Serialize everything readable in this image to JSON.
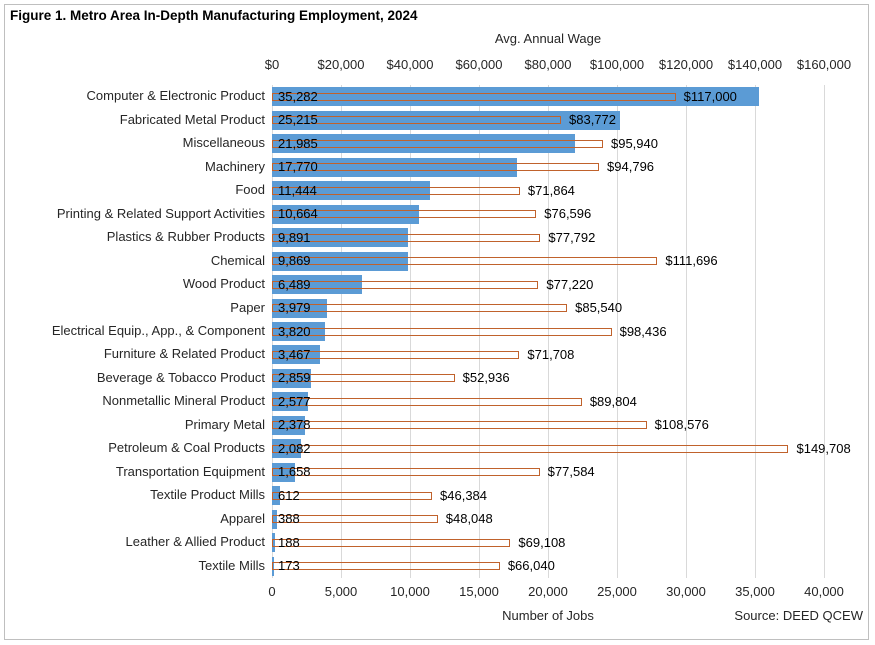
{
  "figure": {
    "title": "Figure 1. Metro Area In-Depth Manufacturing Employment, 2024",
    "source": "Source: DEED QCEW"
  },
  "colors": {
    "jobs_bar": "#5b9bd5",
    "wage_bar_outline": "#c0622c",
    "gridline": "#d9d9d9",
    "text": "#262626"
  },
  "chart_data": {
    "type": "bar",
    "orientation": "horizontal",
    "grid": true,
    "categories": [
      "Computer & Electronic Product",
      "Fabricated Metal Product",
      "Miscellaneous",
      "Machinery",
      "Food",
      "Printing & Related Support Activities",
      "Plastics & Rubber Products",
      "Chemical",
      "Wood Product",
      "Paper",
      "Electrical Equip., App., & Component",
      "Furniture & Related Product",
      "Beverage & Tobacco Product",
      "Nonmetallic Mineral Product",
      "Primary Metal",
      "Petroleum & Coal Products",
      "Transportation Equipment",
      "Textile Product Mills",
      "Apparel",
      "Leather & Allied Product",
      "Textile Mills"
    ],
    "series": [
      {
        "name": "Number of Jobs",
        "axis": "bottom",
        "style": "filled-bar",
        "values": [
          35282,
          25215,
          21985,
          17770,
          11444,
          10664,
          9891,
          9869,
          6489,
          3979,
          3820,
          3467,
          2859,
          2577,
          2378,
          2082,
          1658,
          612,
          388,
          188,
          173
        ],
        "labels": [
          "35,282",
          "25,215",
          "21,985",
          "17,770",
          "11,444",
          "10,664",
          "9,891",
          "9,869",
          "6,489",
          "3,979",
          "3,820",
          "3,467",
          "2,859",
          "2,577",
          "2,378",
          "2,082",
          "1,658",
          "612",
          "388",
          "188",
          "173"
        ]
      },
      {
        "name": "Avg. Annual Wage",
        "axis": "top",
        "style": "outlined-bar",
        "values": [
          117000,
          83772,
          95940,
          94796,
          71864,
          76596,
          77792,
          111696,
          77220,
          85540,
          98436,
          71708,
          52936,
          89804,
          108576,
          149708,
          77584,
          46384,
          48048,
          69108,
          66040
        ],
        "labels": [
          "$117,000",
          "$83,772",
          "$95,940",
          "$94,796",
          "$71,864",
          "$76,596",
          "$77,792",
          "$111,696",
          "$77,220",
          "$85,540",
          "$98,436",
          "$71,708",
          "$52,936",
          "$89,804",
          "$108,576",
          "$149,708",
          "$77,584",
          "$46,384",
          "$48,048",
          "$69,108",
          "$66,040"
        ]
      }
    ],
    "top_axis": {
      "title": "Avg. Annual Wage",
      "min": 0,
      "max": 160000,
      "step": 20000,
      "tick_labels": [
        "$0",
        "$20,000",
        "$40,000",
        "$60,000",
        "$80,000",
        "$100,000",
        "$120,000",
        "$140,000",
        "$160,000"
      ]
    },
    "bottom_axis": {
      "title": "Number of Jobs",
      "min": 0,
      "max": 40000,
      "step": 5000,
      "tick_labels": [
        "0",
        "5,000",
        "10,000",
        "15,000",
        "20,000",
        "25,000",
        "30,000",
        "35,000",
        "40,000"
      ]
    }
  }
}
